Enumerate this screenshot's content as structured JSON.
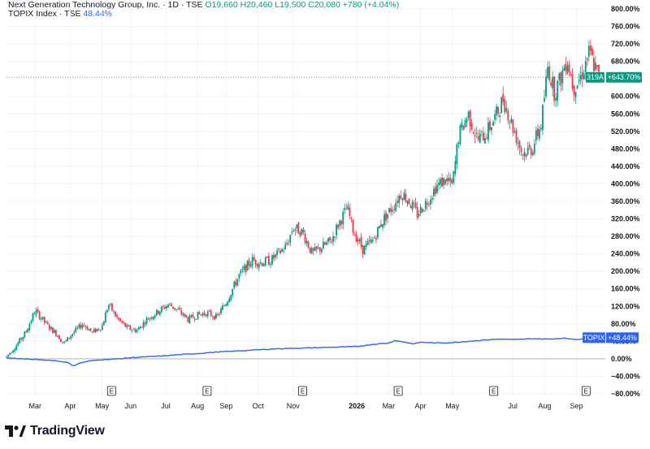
{
  "legend": {
    "symbol_title": "Next Generation Technology Group, Inc. · 1D · TSE",
    "open": "O19,660",
    "high": "H20,460",
    "low": "L19,500",
    "close": "C20,080",
    "change": "+780 (+4.04%)",
    "index_title": "TOPIX Index · TSE",
    "index_value": "48.44%"
  },
  "brand": "TradingView",
  "colors": {
    "up": "#089981",
    "down": "#f23645",
    "index_line": "#2962ff",
    "badge_green": "#089981",
    "badge_blue": "#2962ff",
    "zero_line": "#b2b5be"
  },
  "chart_data": {
    "type": "candlestick_and_line",
    "y_scale": "percent",
    "y_ticks": [
      "800.00%",
      "760.00%",
      "720.00%",
      "680.00%",
      "640.00%",
      "600.00%",
      "560.00%",
      "520.00%",
      "480.00%",
      "440.00%",
      "400.00%",
      "360.00%",
      "320.00%",
      "280.00%",
      "240.00%",
      "200.00%",
      "160.00%",
      "120.00%",
      "80.00%",
      "40.00%",
      "0.00%",
      "−40.00%",
      "−80.00%"
    ],
    "y_tick_values": [
      800,
      760,
      720,
      680,
      640,
      600,
      560,
      520,
      480,
      440,
      400,
      360,
      320,
      280,
      240,
      200,
      160,
      120,
      80,
      40,
      0,
      -40,
      -80
    ],
    "ylim": [
      -90,
      810
    ],
    "x_ticks": [
      "Mar",
      "Apr",
      "May",
      "Jun",
      "Jul",
      "Aug",
      "Sep",
      "Oct",
      "Nov",
      "2026",
      "Mar",
      "Apr",
      "May",
      "Jul",
      "Aug",
      "Sep"
    ],
    "x_tick_bold": [
      false,
      false,
      false,
      false,
      false,
      false,
      false,
      false,
      false,
      true,
      false,
      false,
      false,
      false,
      false,
      false
    ],
    "x_tick_t": [
      0.9,
      2.0,
      3.0,
      3.9,
      5.0,
      6.0,
      6.9,
      7.9,
      9.0,
      11.0,
      12.0,
      13.0,
      14.0,
      15.9,
      16.9,
      17.9
    ],
    "earnings_labels": [
      "E",
      "E",
      "E",
      "E",
      "E",
      "E"
    ],
    "earnings_t": [
      3.3,
      6.3,
      9.3,
      12.3,
      15.3,
      18.2
    ],
    "main_series": {
      "name": "Next Generation Technology Group, Inc.",
      "last_value": 643.7,
      "last_label": "+643.70%",
      "ticker_badge": "319A",
      "path": [
        [
          0,
          5
        ],
        [
          0.3,
          30
        ],
        [
          0.6,
          60
        ],
        [
          0.9,
          110
        ],
        [
          1.3,
          75
        ],
        [
          1.6,
          55
        ],
        [
          1.8,
          35
        ],
        [
          2.1,
          60
        ],
        [
          2.4,
          80
        ],
        [
          2.7,
          60
        ],
        [
          3.0,
          75
        ],
        [
          3.2,
          125
        ],
        [
          3.5,
          90
        ],
        [
          3.8,
          70
        ],
        [
          4.1,
          65
        ],
        [
          4.4,
          90
        ],
        [
          4.8,
          110
        ],
        [
          5.1,
          125
        ],
        [
          5.4,
          110
        ],
        [
          5.7,
          90
        ],
        [
          6.0,
          100
        ],
        [
          6.3,
          105
        ],
        [
          6.6,
          95
        ],
        [
          6.9,
          130
        ],
        [
          7.3,
          190
        ],
        [
          7.7,
          225
        ],
        [
          8.0,
          220
        ],
        [
          8.3,
          225
        ],
        [
          8.6,
          245
        ],
        [
          8.8,
          260
        ],
        [
          9.0,
          300
        ],
        [
          9.3,
          290
        ],
        [
          9.6,
          240
        ],
        [
          9.9,
          255
        ],
        [
          10.2,
          270
        ],
        [
          10.4,
          305
        ],
        [
          10.7,
          345
        ],
        [
          10.9,
          290
        ],
        [
          11.2,
          250
        ],
        [
          11.5,
          270
        ],
        [
          11.8,
          315
        ],
        [
          12.1,
          345
        ],
        [
          12.4,
          380
        ],
        [
          12.6,
          365
        ],
        [
          12.9,
          330
        ],
        [
          13.2,
          360
        ],
        [
          13.5,
          395
        ],
        [
          13.8,
          410
        ],
        [
          14.0,
          395
        ],
        [
          14.2,
          510
        ],
        [
          14.5,
          560
        ],
        [
          14.8,
          500
        ],
        [
          15.1,
          520
        ],
        [
          15.4,
          560
        ],
        [
          15.6,
          595
        ],
        [
          15.9,
          530
        ],
        [
          16.2,
          470
        ],
        [
          16.5,
          480
        ],
        [
          16.8,
          540
        ],
        [
          17.0,
          670
        ],
        [
          17.2,
          610
        ],
        [
          17.4,
          640
        ],
        [
          17.6,
          690
        ],
        [
          17.8,
          620
        ],
        [
          18.0,
          640
        ],
        [
          18.3,
          700
        ],
        [
          18.6,
          644
        ]
      ]
    },
    "index_series": {
      "name": "TOPIX Index",
      "last_value": 48.44,
      "last_label": "+48.44%",
      "badge": "TOPIX",
      "path": [
        [
          0,
          2
        ],
        [
          1.0,
          -2
        ],
        [
          1.5,
          -4
        ],
        [
          1.9,
          -8
        ],
        [
          2.1,
          -16
        ],
        [
          2.3,
          -10
        ],
        [
          2.6,
          -5
        ],
        [
          3.0,
          -2
        ],
        [
          3.5,
          0
        ],
        [
          4.0,
          3
        ],
        [
          4.5,
          5
        ],
        [
          5.0,
          7
        ],
        [
          5.5,
          10
        ],
        [
          6.0,
          12
        ],
        [
          6.5,
          15
        ],
        [
          7.0,
          17
        ],
        [
          7.5,
          19
        ],
        [
          8.0,
          21
        ],
        [
          8.5,
          23
        ],
        [
          9.0,
          24
        ],
        [
          9.5,
          25
        ],
        [
          10.0,
          26
        ],
        [
          10.5,
          27
        ],
        [
          11.0,
          28
        ],
        [
          11.5,
          33
        ],
        [
          12.0,
          36
        ],
        [
          12.2,
          42
        ],
        [
          12.5,
          38
        ],
        [
          12.8,
          34
        ],
        [
          13.0,
          38
        ],
        [
          13.5,
          36
        ],
        [
          14.0,
          37
        ],
        [
          14.5,
          40
        ],
        [
          15.0,
          43
        ],
        [
          15.5,
          45
        ],
        [
          16.0,
          44
        ],
        [
          16.5,
          46
        ],
        [
          17.0,
          45
        ],
        [
          17.5,
          47
        ],
        [
          18.0,
          44
        ],
        [
          18.3,
          47
        ],
        [
          18.6,
          48.44
        ]
      ]
    }
  }
}
